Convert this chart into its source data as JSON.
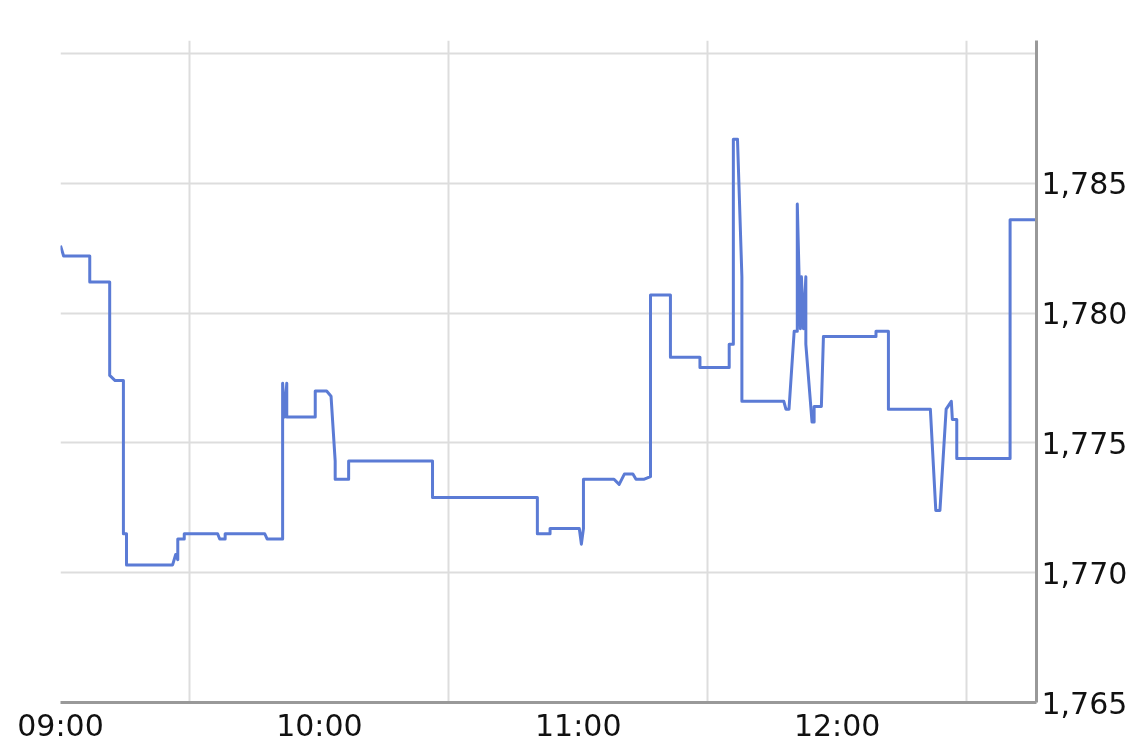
{
  "chart_data": {
    "type": "line",
    "color": "#5b7bd5",
    "grid": true,
    "marker": "none",
    "line_style": "solid",
    "xlim": [
      9.0,
      12.77
    ],
    "ylim": [
      1765,
      1790.5
    ],
    "xticks": [
      {
        "value": 9,
        "label": "09:00"
      },
      {
        "value": 9.5,
        "label": null
      },
      {
        "value": 10,
        "label": "10:00"
      },
      {
        "value": 10.5,
        "label": null
      },
      {
        "value": 11,
        "label": "11:00"
      },
      {
        "value": 11.5,
        "label": null
      },
      {
        "value": 12,
        "label": "12:00"
      },
      {
        "value": 12.5,
        "label": null
      }
    ],
    "yticks": [
      {
        "value": 1765,
        "label": "1,765"
      },
      {
        "value": 1770,
        "label": "1,770"
      },
      {
        "value": 1775,
        "label": "1,775"
      },
      {
        "value": 1780,
        "label": "1,780"
      },
      {
        "value": 1785,
        "label": "1,785"
      },
      {
        "value": 1790,
        "label": null
      }
    ],
    "x": [
      9.0,
      9.012,
      9.113,
      9.113,
      9.19,
      9.19,
      9.211,
      9.243,
      9.243,
      9.255,
      9.255,
      9.433,
      9.445,
      9.453,
      9.453,
      9.478,
      9.478,
      9.607,
      9.615,
      9.636,
      9.636,
      9.789,
      9.798,
      9.858,
      9.858,
      9.866,
      9.874,
      9.874,
      9.984,
      9.984,
      10.028,
      10.045,
      10.061,
      10.061,
      10.113,
      10.113,
      10.437,
      10.437,
      10.842,
      10.842,
      10.891,
      10.891,
      11.004,
      11.012,
      11.02,
      11.02,
      11.138,
      11.158,
      11.178,
      11.211,
      11.223,
      11.255,
      11.279,
      11.279,
      11.356,
      11.356,
      11.47,
      11.47,
      11.583,
      11.583,
      11.599,
      11.599,
      11.615,
      11.632,
      11.632,
      11.794,
      11.802,
      11.814,
      11.834,
      11.846,
      11.846,
      11.858,
      11.862,
      11.87,
      11.879,
      11.879,
      11.903,
      11.911,
      11.911,
      11.939,
      11.947,
      12.15,
      12.15,
      12.198,
      12.198,
      12.36,
      12.381,
      12.397,
      12.421,
      12.441,
      12.445,
      12.462,
      12.462,
      12.668,
      12.668,
      12.765
    ],
    "values": [
      1782.6,
      1782.2,
      1782.2,
      1781.2,
      1781.2,
      1777.6,
      1777.4,
      1777.4,
      1771.5,
      1771.5,
      1770.3,
      1770.3,
      1770.7,
      1770.5,
      1771.3,
      1771.3,
      1771.5,
      1771.5,
      1771.3,
      1771.3,
      1771.5,
      1771.5,
      1771.3,
      1771.3,
      1777.3,
      1776.0,
      1777.3,
      1776.0,
      1776.0,
      1777.0,
      1777.0,
      1776.8,
      1774.3,
      1773.6,
      1773.6,
      1774.3,
      1774.3,
      1772.9,
      1772.9,
      1771.5,
      1771.5,
      1771.7,
      1771.7,
      1771.1,
      1771.7,
      1773.6,
      1773.6,
      1773.4,
      1773.8,
      1773.8,
      1773.6,
      1773.6,
      1773.7,
      1780.7,
      1780.7,
      1778.3,
      1778.3,
      1777.9,
      1777.9,
      1778.8,
      1778.8,
      1786.7,
      1786.7,
      1781.4,
      1776.6,
      1776.6,
      1776.3,
      1776.3,
      1779.3,
      1779.3,
      1784.2,
      1779.4,
      1781.4,
      1779.4,
      1781.4,
      1778.8,
      1775.8,
      1775.8,
      1776.4,
      1776.4,
      1779.1,
      1779.1,
      1779.3,
      1779.3,
      1776.3,
      1776.3,
      1772.4,
      1772.4,
      1776.3,
      1776.6,
      1775.9,
      1775.9,
      1774.4,
      1774.4,
      1783.6,
      1783.6
    ]
  }
}
